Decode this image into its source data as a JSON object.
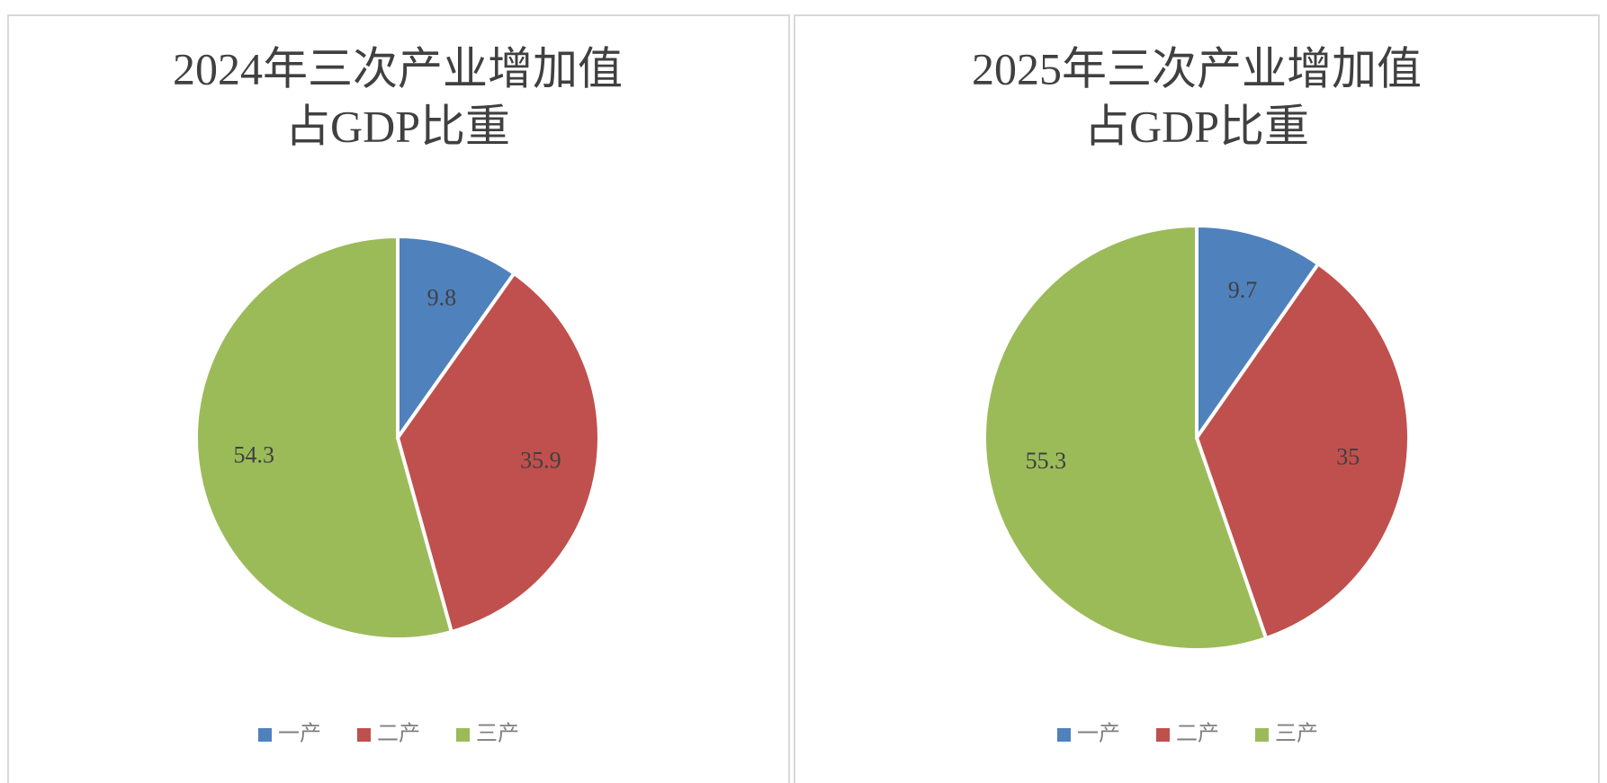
{
  "chart_data": [
    {
      "type": "pie",
      "title": [
        "2024年三次产业增加值",
        "占GDP比重"
      ],
      "categories": [
        "一产",
        "二产",
        "三产"
      ],
      "values": [
        9.8,
        35.9,
        54.3
      ],
      "colors": [
        "#4f81bd",
        "#c0504d",
        "#9bbb59"
      ],
      "legend": "bottom"
    },
    {
      "type": "pie",
      "title": [
        "2025年三次产业增加值",
        "占GDP比重"
      ],
      "categories": [
        "一产",
        "二产",
        "三产"
      ],
      "values": [
        9.7,
        35,
        55.3
      ],
      "colors": [
        "#4f81bd",
        "#c0504d",
        "#9bbb59"
      ],
      "legend": "bottom"
    }
  ]
}
